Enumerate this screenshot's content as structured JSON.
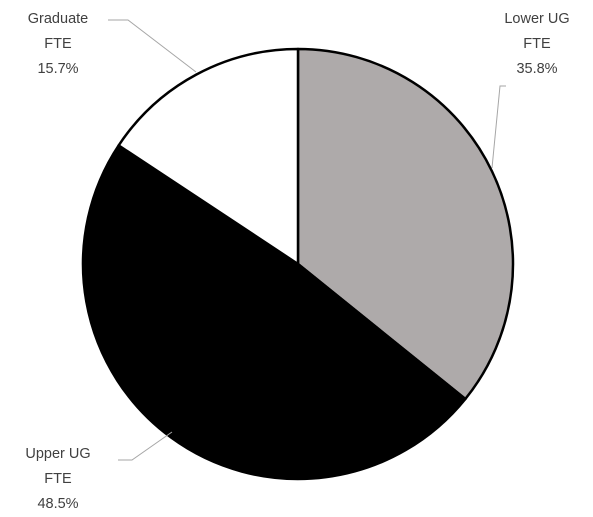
{
  "chart_data": {
    "type": "pie",
    "categories": [
      "Lower UG FTE",
      "Upper UG FTE",
      "Graduate FTE"
    ],
    "values": [
      35.8,
      48.5,
      15.7
    ],
    "value_labels": [
      "35.8%",
      "48.5%",
      "15.7%"
    ],
    "colors": [
      "#aeaaaa",
      "#000000",
      "#ffffff"
    ]
  }
}
